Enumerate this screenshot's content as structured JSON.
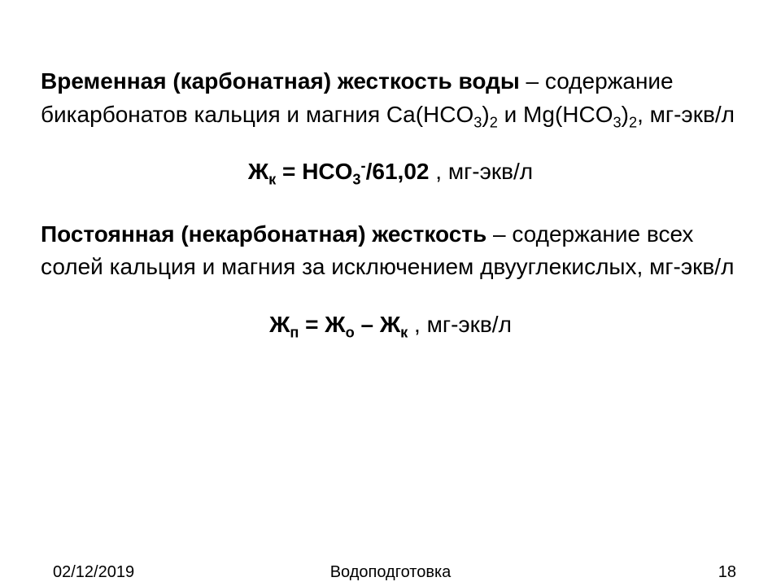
{
  "background_color": "#ffffff",
  "text_color": "#000000",
  "body_font_family": "Verdana, Arial, sans-serif",
  "body_fontsize_pt": 21,
  "footer_font_family": "Arial, sans-serif",
  "footer_fontsize_pt": 15,
  "section1": {
    "title_bold": "Временная (карбонатная) жесткость воды",
    "title_tail": " – содержание бикарбонатов кальция и магния Ca(HCO",
    "sub1": "3",
    "mid1": ")",
    "sub2": "2",
    "mid2": " и Mg(HCO",
    "sub3": "3",
    "mid3": ")",
    "sub4": "2",
    "tail": ", мг-экв/л"
  },
  "formula1": {
    "lhs_pre": "Ж",
    "lhs_sub": "к",
    "eq": " = HCO",
    "ion_sub": "3",
    "ion_sup": "-",
    "div": "/61,02",
    "unit_prefix": "   , ",
    "unit": "мг-экв/л"
  },
  "section2": {
    "title_bold": "Постоянная (некарбонатная) жесткость",
    "title_tail": " – содержание всех солей кальция и магния за исключением двууглекислых, мг-экв/л"
  },
  "formula2": {
    "lhs_pre": "Ж",
    "lhs_sub": "п",
    "eq": " = Ж",
    "rhs1_sub": "о",
    "minus": " – Ж",
    "rhs2_sub": "к",
    "unit_prefix": "  , ",
    "unit": "мг-экв/л"
  },
  "footer": {
    "date": "02/12/2019",
    "title": "Водоподготовка",
    "page": "18"
  }
}
